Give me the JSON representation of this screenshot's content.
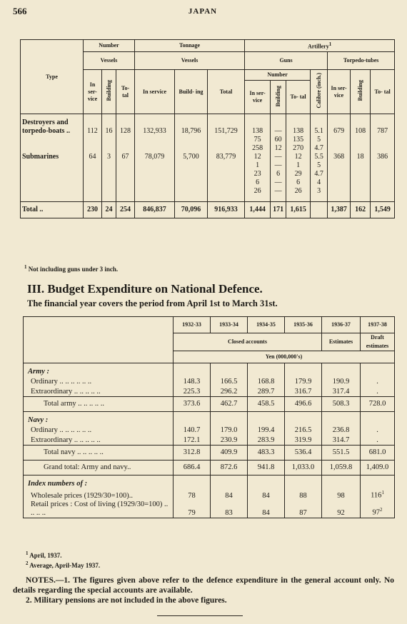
{
  "header": {
    "page_number": "566",
    "running_title": "JAPAN"
  },
  "naval_table": {
    "head": {
      "type": "Type",
      "number": "Number",
      "tonnage": "Tonnage",
      "artillery": "Artillery",
      "artillery_note": "1",
      "vessels_1": "Vessels",
      "vessels_2": "Vessels",
      "guns": "Guns",
      "torpedo_tubes": "Torpedo-tubes",
      "gun_number": "Number",
      "columns": [
        "In ser- vice",
        "Building",
        "To- tal",
        "In service",
        "Build- ing",
        "Total",
        "In ser- vice",
        "Building",
        "To- tal",
        "Calibre (inch.)",
        "In ser- vice",
        "Building",
        "To- tal"
      ]
    },
    "rows": [
      [
        "Destroyers and torpedo-boats ..",
        "112",
        "16",
        "128",
        "132,933",
        "18,796",
        "151,729",
        "138",
        "—",
        "138",
        "5.1",
        "679",
        "108",
        "787"
      ],
      [
        null,
        null,
        null,
        null,
        null,
        null,
        null,
        "75",
        "60",
        "135",
        "5",
        null,
        null,
        null
      ],
      [
        null,
        null,
        null,
        null,
        null,
        null,
        null,
        "258",
        "12",
        "270",
        "4.7",
        null,
        null,
        null
      ],
      [
        "Submarines",
        "64",
        "3",
        "67",
        "78,079",
        "5,700",
        "83,779",
        "12",
        "—",
        "12",
        "5.5",
        "368",
        "18",
        "386"
      ],
      [
        null,
        null,
        null,
        null,
        null,
        null,
        null,
        "1",
        "—",
        "1",
        "5",
        null,
        null,
        null
      ],
      [
        null,
        null,
        null,
        null,
        null,
        null,
        null,
        "23",
        "6",
        "29",
        "4.7",
        null,
        null,
        null
      ],
      [
        null,
        null,
        null,
        null,
        null,
        null,
        null,
        "6",
        "—",
        "6",
        "4",
        null,
        null,
        null
      ],
      [
        null,
        null,
        null,
        null,
        null,
        null,
        null,
        "26",
        "—",
        "26",
        "3",
        null,
        null,
        null
      ]
    ],
    "total": [
      "Total ..",
      "230",
      "24",
      "254",
      "846,837",
      "70,096",
      "916,933",
      "1,444",
      "171",
      "1,615",
      null,
      "1,387",
      "162",
      "1,549"
    ]
  },
  "naval_footnote": {
    "marker": "1",
    "text": "Not including guns under 3 inch."
  },
  "section": {
    "title": "III. Budget Expenditure on National Defence.",
    "subtitle": "The financial year covers the period from April 1st to March 31st."
  },
  "budget_table": {
    "years": [
      "1932-33",
      "1933-34",
      "1934-35",
      "1935-36",
      "1936-37",
      "1937-38"
    ],
    "closed_accounts": "Closed accounts",
    "estimates": "Estimates",
    "draft_estimates": "Draft estimates",
    "unit": "Yen (000,000's)",
    "groups": [
      {
        "heading": "Army :",
        "items": [
          {
            "label": "Ordinary .. .. .. .. .. ..",
            "values": [
              "148.3",
              "166.5",
              "168.8",
              "179.9",
              "190.9",
              "."
            ]
          },
          {
            "label": "Extraordinary .. .. .. .. ..",
            "values": [
              "225.3",
              "296.2",
              "289.7",
              "316.7",
              "317.4",
              "."
            ]
          }
        ],
        "total": {
          "label": "Total army .. .. .. .. ..",
          "values": [
            "373.6",
            "462.7",
            "458.5",
            "496.6",
            "508.3",
            "728.0"
          ]
        }
      },
      {
        "heading": "Navy :",
        "items": [
          {
            "label": "Ordinary .. .. .. .. .. ..",
            "values": [
              "140.7",
              "179.0",
              "199.4",
              "216.5",
              "236.8",
              "."
            ]
          },
          {
            "label": "Extraordinary .. .. .. .. ..",
            "values": [
              "172.1",
              "230.9",
              "283.9",
              "319.9",
              "314.7",
              "."
            ]
          }
        ],
        "total": {
          "label": "Total navy .. .. .. .. ..",
          "values": [
            "312.8",
            "409.9",
            "483.3",
            "536.4",
            "551.5",
            "681.0"
          ]
        }
      }
    ],
    "grand_total": {
      "label": "Grand total: Army and navy..",
      "values": [
        "686.4",
        "872.6",
        "941.8",
        "1,033.0",
        "1,059.8",
        "1,409.0"
      ]
    },
    "index": {
      "heading": "Index numbers of :",
      "items": [
        {
          "label": "Wholesale prices (1929/30=100)..",
          "values": [
            "78",
            "84",
            "84",
            "88",
            "98",
            "116"
          ],
          "last_value_note": "1"
        },
        {
          "label": "Retail prices : Cost of living (1929/30=100) .. .. .. ..",
          "values": [
            "79",
            "83",
            "84",
            "87",
            "92",
            "97"
          ],
          "last_value_note": "2"
        }
      ]
    }
  },
  "budget_footnotes": [
    {
      "marker": "1",
      "text": "April, 1937."
    },
    {
      "marker": "2",
      "text": "Average, April-May 1937."
    }
  ],
  "notes": [
    {
      "number": "NOTES.—1.",
      "text": "The figures given above refer to the defence expenditure in the general account only. No details regarding the special accounts are available."
    },
    {
      "number": "2.",
      "text": "Military pensions are not included in the above figures."
    }
  ]
}
